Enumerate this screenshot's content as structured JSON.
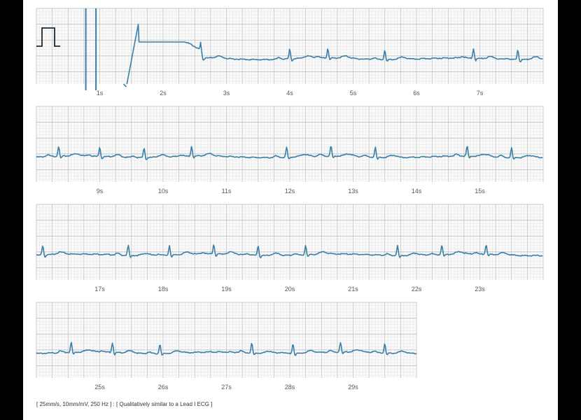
{
  "chart_data": {
    "type": "line",
    "title": "",
    "xlabel": "",
    "ylabel": "",
    "footer": "[ 25mm/s, 10mm/mV, 250 Hz ] : [ Qualitatively similar to a Lead I ECG ]",
    "grid": true,
    "line_color": "#3a7fa8",
    "grid_major_color": "#b8b8b8",
    "grid_minor_color": "#e4e4e4",
    "calibration_pulse": true,
    "rows": [
      {
        "x_range": [
          0,
          8
        ],
        "tick_labels": [
          "1s",
          "2s",
          "3s",
          "4s",
          "5s",
          "6s",
          "7s"
        ],
        "ticks": [
          1,
          2,
          3,
          4,
          5,
          6,
          7
        ],
        "beats_s": [
          2.6,
          4.0,
          4.6,
          5.5,
          6.9,
          7.6
        ],
        "artifact": true
      },
      {
        "x_range": [
          8,
          16
        ],
        "tick_labels": [
          "9s",
          "10s",
          "11s",
          "12s",
          "13s",
          "14s",
          "15s"
        ],
        "ticks": [
          9,
          10,
          11,
          12,
          13,
          14,
          15
        ],
        "beats_s": [
          8.35,
          9.0,
          9.7,
          10.45,
          11.95,
          12.65,
          13.35,
          14.8,
          15.5
        ]
      },
      {
        "x_range": [
          16,
          24
        ],
        "tick_labels": [
          "17s",
          "18s",
          "19s",
          "20s",
          "21s",
          "22s",
          "23s"
        ],
        "ticks": [
          17,
          18,
          19,
          20,
          21,
          22,
          23
        ],
        "beats_s": [
          16.1,
          17.45,
          18.1,
          18.8,
          19.5,
          20.25,
          21.7,
          22.4,
          23.1
        ]
      },
      {
        "x_range": [
          24,
          30
        ],
        "tick_labels": [
          "25s",
          "26s",
          "27s",
          "28s",
          "29s"
        ],
        "ticks": [
          25,
          26,
          27,
          28,
          29
        ],
        "beats_s": [
          24.55,
          25.2,
          25.95,
          27.4,
          28.05,
          28.8,
          29.5
        ]
      }
    ]
  }
}
